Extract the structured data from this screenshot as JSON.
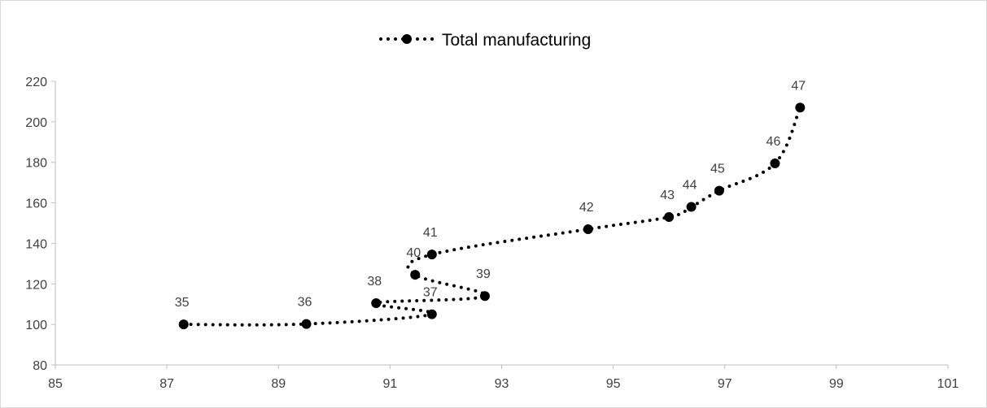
{
  "chart_data": {
    "type": "scatter",
    "title": "",
    "xlabel": "",
    "ylabel": "",
    "xlim": [
      85,
      101
    ],
    "ylim": [
      80,
      220
    ],
    "x_ticks": [
      85,
      87,
      89,
      91,
      93,
      95,
      97,
      99,
      101
    ],
    "y_ticks": [
      80,
      100,
      120,
      140,
      160,
      180,
      200,
      220
    ],
    "grid": false,
    "legend_position": "top-center",
    "series": [
      {
        "name": "Total manufacturing",
        "color": "#000000",
        "line_style": "dotted",
        "marker": "circle",
        "points": [
          {
            "label": "35",
            "x": 87.3,
            "y": 100.0
          },
          {
            "label": "36",
            "x": 89.5,
            "y": 100.2
          },
          {
            "label": "37",
            "x": 91.75,
            "y": 105.0
          },
          {
            "label": "38",
            "x": 90.75,
            "y": 110.5
          },
          {
            "label": "39",
            "x": 92.7,
            "y": 114.0
          },
          {
            "label": "40",
            "x": 91.45,
            "y": 124.5
          },
          {
            "label": "41",
            "x": 91.75,
            "y": 134.5
          },
          {
            "label": "42",
            "x": 94.55,
            "y": 147.0
          },
          {
            "label": "43",
            "x": 96.0,
            "y": 153.0
          },
          {
            "label": "44",
            "x": 96.4,
            "y": 158.0
          },
          {
            "label": "45",
            "x": 96.9,
            "y": 166.0
          },
          {
            "label": "46",
            "x": 97.9,
            "y": 179.5
          },
          {
            "label": "47",
            "x": 98.35,
            "y": 207.0
          }
        ]
      }
    ]
  }
}
